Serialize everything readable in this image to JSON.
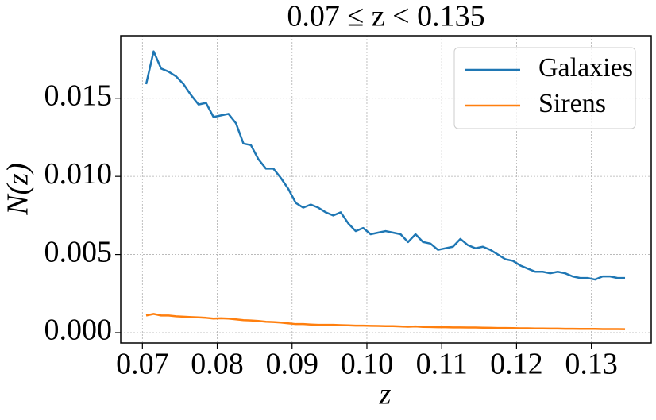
{
  "chart_data": {
    "type": "line",
    "title": "0.07 ≤ z < 0.135",
    "xlabel": "z",
    "ylabel": "N(z)",
    "x": [
      0.0705,
      0.0715,
      0.0725,
      0.0735,
      0.0745,
      0.0755,
      0.0765,
      0.0775,
      0.0785,
      0.0795,
      0.0805,
      0.0815,
      0.0825,
      0.0835,
      0.0845,
      0.0855,
      0.0865,
      0.0875,
      0.0885,
      0.0895,
      0.0905,
      0.0915,
      0.0925,
      0.0935,
      0.0945,
      0.0955,
      0.0965,
      0.0975,
      0.0985,
      0.0995,
      0.1005,
      0.1015,
      0.1025,
      0.1035,
      0.1045,
      0.1055,
      0.1065,
      0.1075,
      0.1085,
      0.1095,
      0.1105,
      0.1115,
      0.1125,
      0.1135,
      0.1145,
      0.1155,
      0.1165,
      0.1175,
      0.1185,
      0.1195,
      0.1205,
      0.1215,
      0.1225,
      0.1235,
      0.1245,
      0.1255,
      0.1265,
      0.1275,
      0.1285,
      0.1295,
      0.1305,
      0.1315,
      0.1325,
      0.1335,
      0.1345
    ],
    "series": [
      {
        "name": "Galaxies",
        "color": "#1f77b4",
        "values": [
          0.0159,
          0.018,
          0.0169,
          0.0167,
          0.0164,
          0.0159,
          0.0152,
          0.0146,
          0.0147,
          0.0138,
          0.0139,
          0.014,
          0.0134,
          0.0121,
          0.012,
          0.0111,
          0.0105,
          0.0105,
          0.0099,
          0.0092,
          0.0083,
          0.008,
          0.0082,
          0.008,
          0.0077,
          0.0075,
          0.0077,
          0.007,
          0.0065,
          0.0067,
          0.0063,
          0.0064,
          0.0065,
          0.0064,
          0.0063,
          0.0058,
          0.0063,
          0.0058,
          0.0057,
          0.0053,
          0.0054,
          0.0055,
          0.006,
          0.0056,
          0.0054,
          0.0055,
          0.0053,
          0.005,
          0.0047,
          0.0046,
          0.0043,
          0.0041,
          0.0039,
          0.0039,
          0.0038,
          0.0039,
          0.0038,
          0.0036,
          0.0035,
          0.0035,
          0.0034,
          0.0036,
          0.0036,
          0.0035,
          0.0035
        ]
      },
      {
        "name": "Sirens",
        "color": "#ff7f0e",
        "values": [
          0.0011,
          0.0012,
          0.0011,
          0.0011,
          0.00105,
          0.00102,
          0.001,
          0.00098,
          0.00095,
          0.0009,
          0.00092,
          0.0009,
          0.00085,
          0.0008,
          0.00078,
          0.00075,
          0.0007,
          0.00068,
          0.00065,
          0.0006,
          0.00055,
          0.00055,
          0.00052,
          0.0005,
          0.0005,
          0.0005,
          0.00048,
          0.00047,
          0.00045,
          0.00045,
          0.00044,
          0.00043,
          0.00042,
          0.00042,
          0.0004,
          0.00038,
          0.0004,
          0.00037,
          0.00036,
          0.00035,
          0.00035,
          0.00034,
          0.00034,
          0.00033,
          0.00033,
          0.00032,
          0.00031,
          0.0003,
          0.0003,
          0.00029,
          0.00028,
          0.00028,
          0.00027,
          0.00027,
          0.00026,
          0.00026,
          0.00025,
          0.00025,
          0.00024,
          0.00024,
          0.00024,
          0.00023,
          0.00023,
          0.00023,
          0.00022
        ]
      }
    ],
    "xlim": [
      0.0671,
      0.138
    ],
    "ylim": [
      -0.00066,
      0.019
    ],
    "xticks": [
      0.07,
      0.08,
      0.09,
      {
        "value": 0.1,
        "label": "0.10"
      },
      0.11,
      0.12,
      0.13
    ],
    "yticks": [
      {
        "value": 0,
        "label": "0.000"
      },
      {
        "value": 0.005,
        "label": "0.005"
      },
      {
        "value": 0.01,
        "label": "0.010"
      },
      {
        "value": 0.015,
        "label": "0.015"
      }
    ],
    "grid": true,
    "legend": "upper right"
  }
}
